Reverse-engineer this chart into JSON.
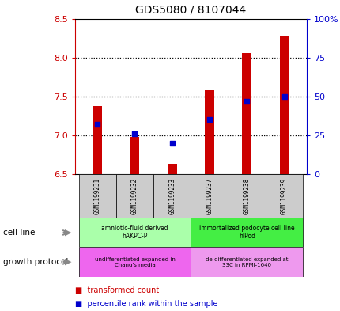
{
  "title": "GDS5080 / 8107044",
  "samples": [
    "GSM1199231",
    "GSM1199232",
    "GSM1199233",
    "GSM1199237",
    "GSM1199238",
    "GSM1199239"
  ],
  "transformed_counts": [
    7.38,
    6.98,
    6.63,
    7.58,
    8.06,
    8.27
  ],
  "percentile_ranks": [
    32,
    26,
    20,
    35,
    47,
    50
  ],
  "ylim_left": [
    6.5,
    8.5
  ],
  "ylim_right": [
    0,
    100
  ],
  "yticks_left": [
    6.5,
    7.0,
    7.5,
    8.0,
    8.5
  ],
  "yticks_right": [
    0,
    25,
    50,
    75,
    100
  ],
  "bar_color": "#cc0000",
  "dot_color": "#0000cc",
  "bar_bottom": 6.5,
  "bar_width": 0.25,
  "cell_line_groups": [
    {
      "label": "amniotic-fluid derived\nhAKPC-P",
      "samples": [
        0,
        1,
        2
      ],
      "color": "#aaffaa"
    },
    {
      "label": "immortalized podocyte cell line\nhIPod",
      "samples": [
        3,
        4,
        5
      ],
      "color": "#44ee44"
    }
  ],
  "growth_protocol_groups": [
    {
      "label": "undifferentiated expanded in\nChang's media",
      "samples": [
        0,
        1,
        2
      ],
      "color": "#ee66ee"
    },
    {
      "label": "de-differentiated expanded at\n33C in RPMI-1640",
      "samples": [
        3,
        4,
        5
      ],
      "color": "#ee99ee"
    }
  ],
  "left_labels": [
    "cell line",
    "growth protocol"
  ],
  "legend_items": [
    {
      "color": "#cc0000",
      "label": "transformed count"
    },
    {
      "color": "#0000cc",
      "label": "percentile rank within the sample"
    }
  ],
  "left_yaxis_color": "#cc0000",
  "right_yaxis_color": "#0000cc",
  "sample_label_bg": "#cccccc",
  "grid_yticks": [
    7.0,
    7.5,
    8.0
  ]
}
